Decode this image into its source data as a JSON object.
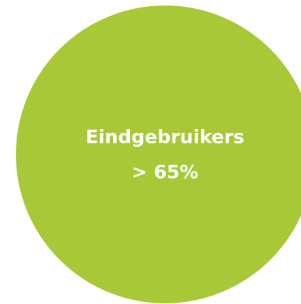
{
  "circle": {
    "label": "Eindgebruikers",
    "value": "> 65%"
  }
}
